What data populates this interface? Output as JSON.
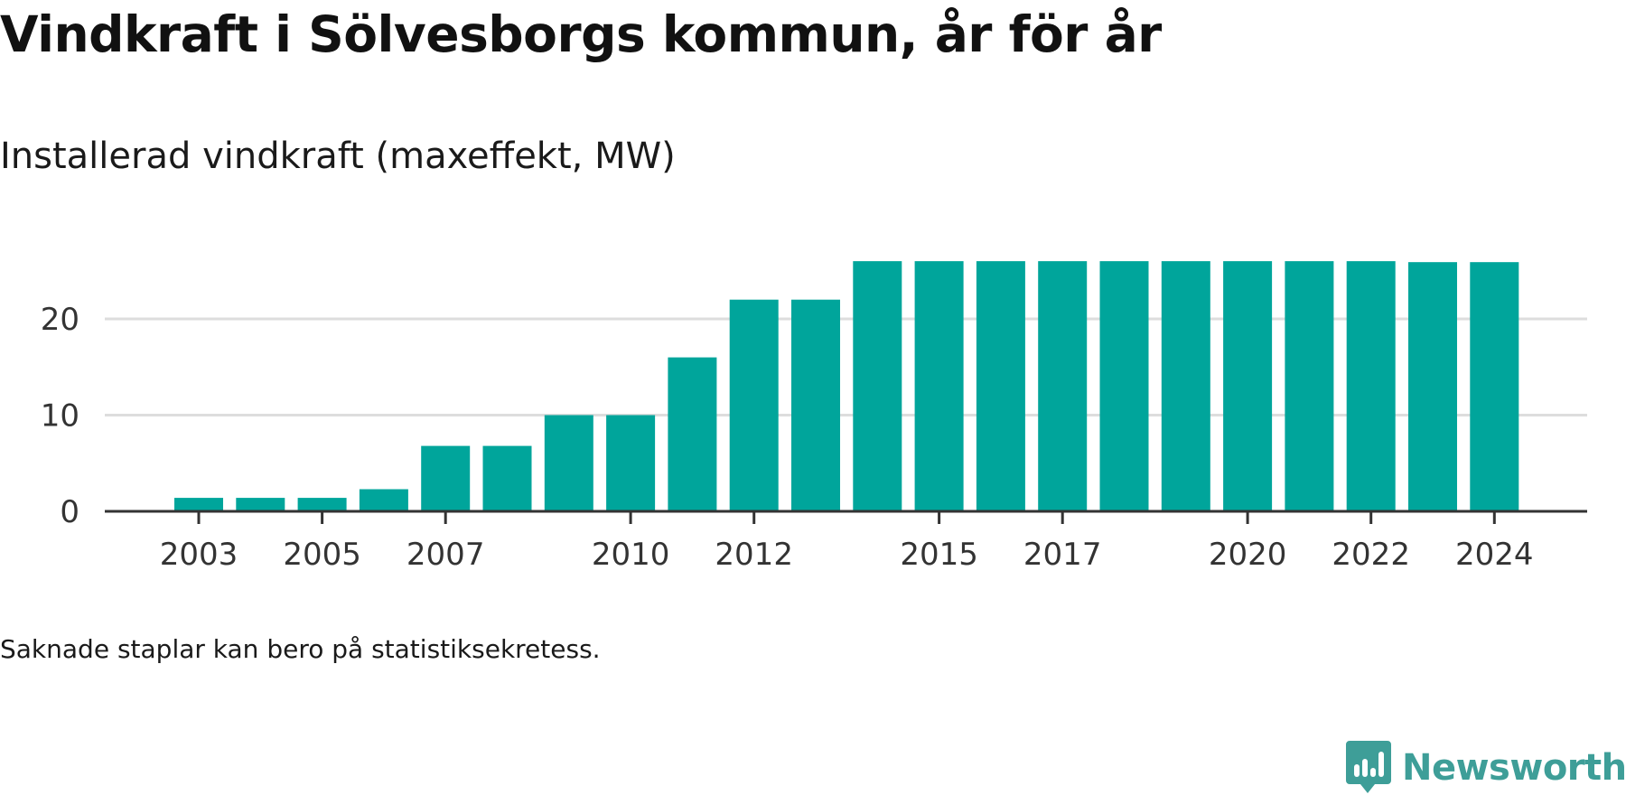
{
  "chart_data": {
    "type": "bar",
    "title": "Vindkraft i Sölvesborgs kommun, år för år",
    "subtitle": "Installerad vindkraft (maxeffekt, MW)",
    "categories": [
      "2003",
      "2004",
      "2005",
      "2006",
      "2007",
      "2008",
      "2009",
      "2010",
      "2011",
      "2012",
      "2013",
      "2014",
      "2015",
      "2016",
      "2017",
      "2018",
      "2019",
      "2020",
      "2021",
      "2022",
      "2023",
      "2024"
    ],
    "values": [
      1.4,
      1.4,
      1.4,
      2.3,
      6.8,
      6.8,
      10,
      10,
      16,
      22,
      22,
      26,
      26,
      26,
      26,
      26,
      26,
      26,
      26,
      26,
      25.9,
      25.9
    ],
    "xticks": [
      "2003",
      "2005",
      "2007",
      "2010",
      "2012",
      "2015",
      "2017",
      "2020",
      "2022",
      "2024"
    ],
    "yticks": [
      0,
      10,
      20
    ],
    "ylim": [
      0,
      27
    ],
    "grid": true,
    "bar_color": "#00a59b",
    "footnote": "Saknade staplar kan bero på statistiksekretess."
  },
  "brand": {
    "name": "Newsworthy",
    "color": "#3e9e98",
    "icon": "newsworthy-logo-icon"
  }
}
